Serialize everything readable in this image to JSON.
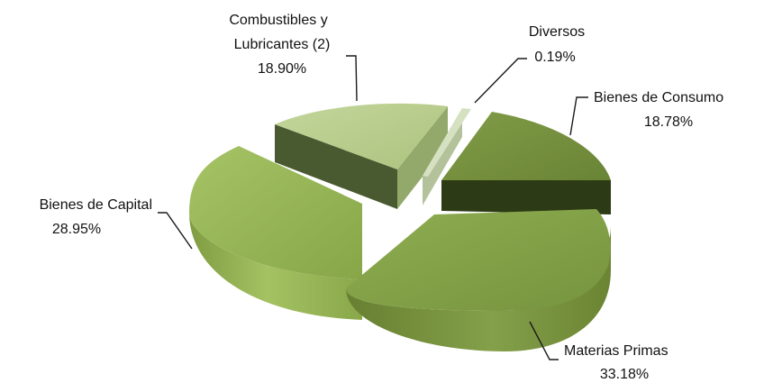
{
  "chart_data": {
    "type": "pie",
    "style": "3d-exploded",
    "slices": [
      {
        "name": "Combustibles y Lubricantes (2)",
        "label_lines": [
          "Combustibles y",
          "Lubricantes (2)"
        ],
        "value": 18.9,
        "value_label": "18.90%",
        "color": "#b7cc8c"
      },
      {
        "name": "Diversos",
        "label_lines": [
          "Diversos"
        ],
        "value": 0.19,
        "value_label": "0.19%",
        "color": "#a3b97a"
      },
      {
        "name": "Bienes de Consumo",
        "label_lines": [
          "Bienes de Consumo"
        ],
        "value": 18.78,
        "value_label": "18.78%",
        "color": "#76903f"
      },
      {
        "name": "Materias Primas",
        "label_lines": [
          "Materias Primas"
        ],
        "value": 33.18,
        "value_label": "33.18%",
        "color": "#84a24a"
      },
      {
        "name": "Bienes de Capital",
        "label_lines": [
          "Bienes de Capital"
        ],
        "value": 28.95,
        "value_label": "28.95%",
        "color": "#93b354"
      }
    ]
  }
}
